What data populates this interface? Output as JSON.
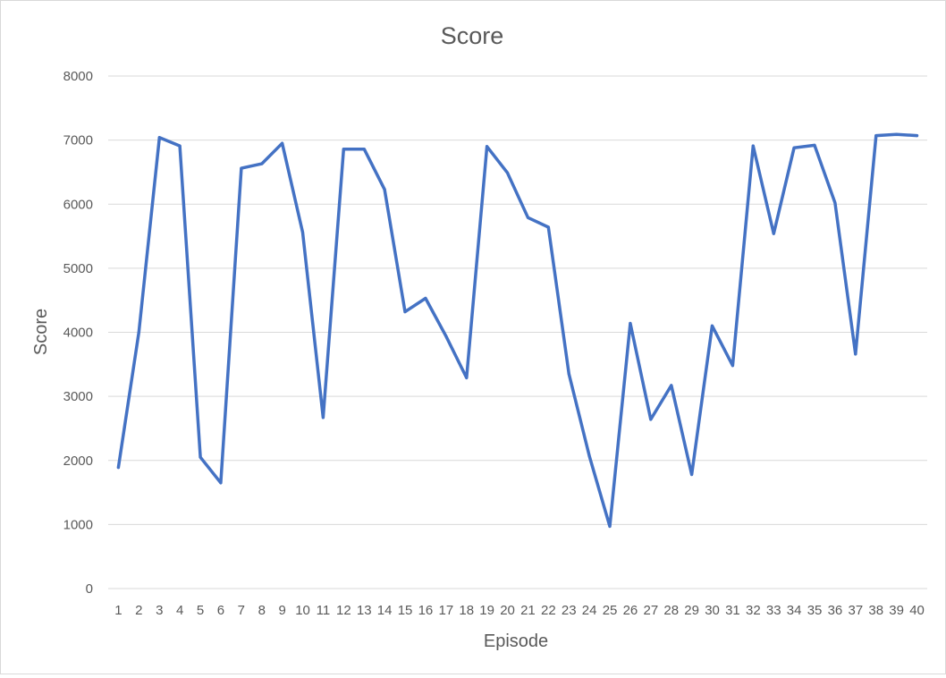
{
  "chart_data": {
    "type": "line",
    "title": "Score",
    "xlabel": "Episode",
    "ylabel": "Score",
    "ylim": [
      0,
      8000
    ],
    "yticks": [
      0,
      1000,
      2000,
      3000,
      4000,
      5000,
      6000,
      7000,
      8000
    ],
    "grid": true,
    "legend": "none",
    "x": [
      1,
      2,
      3,
      4,
      5,
      6,
      7,
      8,
      9,
      10,
      11,
      12,
      13,
      14,
      15,
      16,
      17,
      18,
      19,
      20,
      21,
      22,
      23,
      24,
      25,
      26,
      27,
      28,
      29,
      30,
      31,
      32,
      33,
      34,
      35,
      36,
      37,
      38,
      39,
      40
    ],
    "series": [
      {
        "color": "#4472c4",
        "values": [
          1890,
          4000,
          7040,
          6910,
          2050,
          1650,
          6560,
          6630,
          6950,
          5560,
          2670,
          6860,
          6860,
          6230,
          4320,
          4530,
          3940,
          3290,
          6900,
          6490,
          5790,
          5640,
          3350,
          2070,
          970,
          4140,
          2640,
          3170,
          1780,
          4100,
          3480,
          6910,
          5540,
          6880,
          6920,
          6020,
          3660,
          7070,
          7090,
          7070
        ]
      }
    ]
  }
}
